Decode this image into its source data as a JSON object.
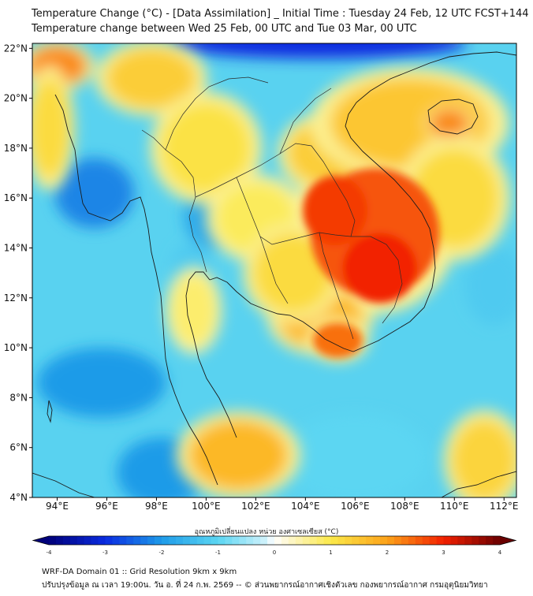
{
  "title_line1": "Temperature Change (°C) - [Data Assimilation] _ Initial Time : Tuesday 24 Feb, 12 UTC FCST+144",
  "title_line2": "Temperature change between Wed 25 Feb, 00 UTC and Tue 03 Mar, 00 UTC",
  "map": {
    "lon_range": [
      93,
      112.5
    ],
    "lat_range": [
      4,
      22.2
    ],
    "lon_ticks": [
      {
        "v": 94,
        "label": "94°E"
      },
      {
        "v": 96,
        "label": "96°E"
      },
      {
        "v": 98,
        "label": "98°E"
      },
      {
        "v": 100,
        "label": "100°E"
      },
      {
        "v": 102,
        "label": "102°E"
      },
      {
        "v": 104,
        "label": "104°E"
      },
      {
        "v": 106,
        "label": "106°E"
      },
      {
        "v": 108,
        "label": "108°E"
      },
      {
        "v": 110,
        "label": "110°E"
      },
      {
        "v": 112,
        "label": "112°E"
      }
    ],
    "lat_ticks": [
      {
        "v": 4,
        "label": "4°N"
      },
      {
        "v": 6,
        "label": "6°N"
      },
      {
        "v": 8,
        "label": "8°N"
      },
      {
        "v": 10,
        "label": "10°N"
      },
      {
        "v": 12,
        "label": "12°N"
      },
      {
        "v": 14,
        "label": "14°N"
      },
      {
        "v": 16,
        "label": "16°N"
      },
      {
        "v": 18,
        "label": "18°N"
      },
      {
        "v": 20,
        "label": "20°N"
      },
      {
        "v": 22,
        "label": "22°N"
      }
    ],
    "field_background_color": "#59d2f0",
    "warm_regions": [
      {
        "lon": 106.8,
        "lat": 14.6,
        "rlon": 2.6,
        "rlat": 2.6,
        "value": 2.6
      },
      {
        "lon": 105.2,
        "lat": 15.5,
        "rlon": 1.3,
        "rlat": 1.4,
        "value": 2.8
      },
      {
        "lon": 107.0,
        "lat": 13.2,
        "rlon": 1.5,
        "rlat": 1.4,
        "value": 3.0
      },
      {
        "lon": 104.6,
        "lat": 11.2,
        "rlon": 1.7,
        "rlat": 1.2,
        "value": 1.7
      },
      {
        "lon": 105.3,
        "lat": 10.3,
        "rlon": 1.0,
        "rlat": 0.7,
        "value": 2.4
      },
      {
        "lon": 104.9,
        "lat": 17.8,
        "rlon": 1.6,
        "rlat": 1.3,
        "value": 1.4
      },
      {
        "lon": 108.2,
        "lat": 19.0,
        "rlon": 3.2,
        "rlat": 1.8,
        "value": 1.5
      },
      {
        "lon": 109.8,
        "lat": 19.0,
        "rlon": 0.8,
        "rlat": 0.6,
        "value": 2.2
      },
      {
        "lon": 110.0,
        "lat": 16.0,
        "rlon": 1.8,
        "rlat": 2.0,
        "value": 1.2
      },
      {
        "lon": 97.8,
        "lat": 20.8,
        "rlon": 1.8,
        "rlat": 1.2,
        "value": 1.4
      },
      {
        "lon": 94.0,
        "lat": 21.3,
        "rlon": 1.2,
        "rlat": 0.8,
        "value": 2.2
      },
      {
        "lon": 93.7,
        "lat": 18.8,
        "rlon": 0.8,
        "rlat": 2.0,
        "value": 1.2
      },
      {
        "lon": 100.0,
        "lat": 18.0,
        "rlon": 1.8,
        "rlat": 1.8,
        "value": 1.1
      },
      {
        "lon": 102.0,
        "lat": 15.2,
        "rlon": 1.6,
        "rlat": 1.4,
        "value": 0.9
      },
      {
        "lon": 103.5,
        "lat": 13.0,
        "rlon": 1.6,
        "rlat": 1.6,
        "value": 1.2
      },
      {
        "lon": 101.3,
        "lat": 5.7,
        "rlon": 2.0,
        "rlat": 1.4,
        "value": 1.7
      },
      {
        "lon": 111.2,
        "lat": 5.5,
        "rlon": 1.3,
        "rlat": 1.6,
        "value": 1.3
      },
      {
        "lon": 99.5,
        "lat": 11.5,
        "rlon": 0.9,
        "rlat": 1.4,
        "value": 0.8
      }
    ],
    "cool_regions": [
      {
        "lon": 104.5,
        "lat": 22.2,
        "rlon": 6.0,
        "rlat": 0.6,
        "value": -3.0
      },
      {
        "lon": 95.5,
        "lat": 16.2,
        "rlon": 1.6,
        "rlat": 1.4,
        "value": -2.2
      },
      {
        "lon": 95.8,
        "lat": 8.6,
        "rlon": 2.6,
        "rlat": 1.4,
        "value": -2.0
      },
      {
        "lon": 98.2,
        "lat": 5.0,
        "rlon": 1.8,
        "rlat": 1.4,
        "value": -2.0
      },
      {
        "lon": 100.2,
        "lat": 15.3,
        "rlon": 1.1,
        "rlat": 1.3,
        "value": -1.8
      },
      {
        "lon": 99.4,
        "lat": 13.2,
        "rlon": 0.8,
        "rlat": 1.0,
        "value": -1.2
      },
      {
        "lon": 111.6,
        "lat": 12.5,
        "rlon": 1.2,
        "rlat": 1.6,
        "value": -1.2
      },
      {
        "lon": 106.0,
        "lat": 5.6,
        "rlon": 3.0,
        "rlat": 1.8,
        "value": -1.0
      }
    ],
    "colorbar": {
      "label": "อุณหภูมิเปลี่ยนแปลง หน่วย องศาเซลเซียส (°C)",
      "min": -4,
      "max": 4,
      "ticks": [
        {
          "v": -4,
          "label": "-4"
        },
        {
          "v": -3,
          "label": "-3"
        },
        {
          "v": -2,
          "label": "-2"
        },
        {
          "v": -1,
          "label": "-1"
        },
        {
          "v": 0,
          "label": "0"
        },
        {
          "v": 1,
          "label": "1"
        },
        {
          "v": 2,
          "label": "2"
        },
        {
          "v": 3,
          "label": "3"
        },
        {
          "v": 4,
          "label": "4"
        }
      ],
      "stops": [
        {
          "v": -4,
          "color": "#00007a"
        },
        {
          "v": -3,
          "color": "#0a2be0"
        },
        {
          "v": -2,
          "color": "#1e9be8"
        },
        {
          "v": -1,
          "color": "#5cd6f2"
        },
        {
          "v": -0.2,
          "color": "#c8f0fb"
        },
        {
          "v": 0,
          "color": "#ffffff"
        },
        {
          "v": 0.3,
          "color": "#fdf6c6"
        },
        {
          "v": 1,
          "color": "#fbe94a"
        },
        {
          "v": 2,
          "color": "#fca31a"
        },
        {
          "v": 3,
          "color": "#f22000"
        },
        {
          "v": 4,
          "color": "#6a0000"
        }
      ]
    }
  },
  "footer_line1": "WRF-DA Domain 01 :: Grid Resolution 9km x 9km",
  "footer_line2": "ปรับปรุงข้อมูล ณ เวลา 19:00น. วัน อ. ที่ 24 ก.พ. 2569 -- © ส่วนพยากรณ์อากาศเชิงตัวเลข กองพยากรณ์อากาศ กรมอุตุนิยมวิทยา"
}
